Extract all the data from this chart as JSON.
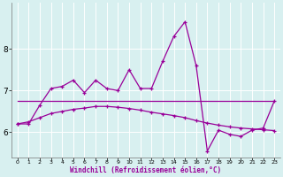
{
  "x": [
    0,
    1,
    2,
    3,
    4,
    5,
    6,
    7,
    8,
    9,
    10,
    11,
    12,
    13,
    14,
    15,
    16,
    17,
    18,
    19,
    20,
    21,
    22,
    23
  ],
  "line1": [
    6.2,
    6.2,
    6.65,
    7.05,
    7.1,
    7.25,
    6.95,
    7.25,
    7.05,
    7.0,
    7.5,
    7.05,
    7.05,
    7.7,
    8.3,
    8.65,
    7.6,
    5.55,
    6.05,
    5.95,
    5.9,
    6.05,
    6.1,
    6.75
  ],
  "line2": [
    6.75,
    6.75,
    6.75,
    6.75,
    6.75,
    6.75,
    6.75,
    6.75,
    6.75,
    6.75,
    6.75,
    6.75,
    6.75,
    6.75,
    6.75,
    6.75,
    6.75,
    6.75,
    6.75,
    6.75,
    6.75,
    6.75,
    6.75,
    6.75
  ],
  "line3": [
    6.2,
    6.25,
    6.35,
    6.45,
    6.5,
    6.55,
    6.58,
    6.62,
    6.62,
    6.6,
    6.57,
    6.53,
    6.48,
    6.44,
    6.4,
    6.35,
    6.28,
    6.22,
    6.17,
    6.13,
    6.1,
    6.08,
    6.06,
    6.04
  ],
  "line_color": "#990099",
  "bg_color": "#d8f0f0",
  "grid_color": "#ffffff",
  "xlabel": "Windchill (Refroidissement éolien,°C)",
  "ylim": [
    5.4,
    9.1
  ],
  "xlim": [
    -0.5,
    23.5
  ],
  "yticks": [
    6,
    7,
    8
  ],
  "xticks": [
    0,
    1,
    2,
    3,
    4,
    5,
    6,
    7,
    8,
    9,
    10,
    11,
    12,
    13,
    14,
    15,
    16,
    17,
    18,
    19,
    20,
    21,
    22,
    23
  ]
}
